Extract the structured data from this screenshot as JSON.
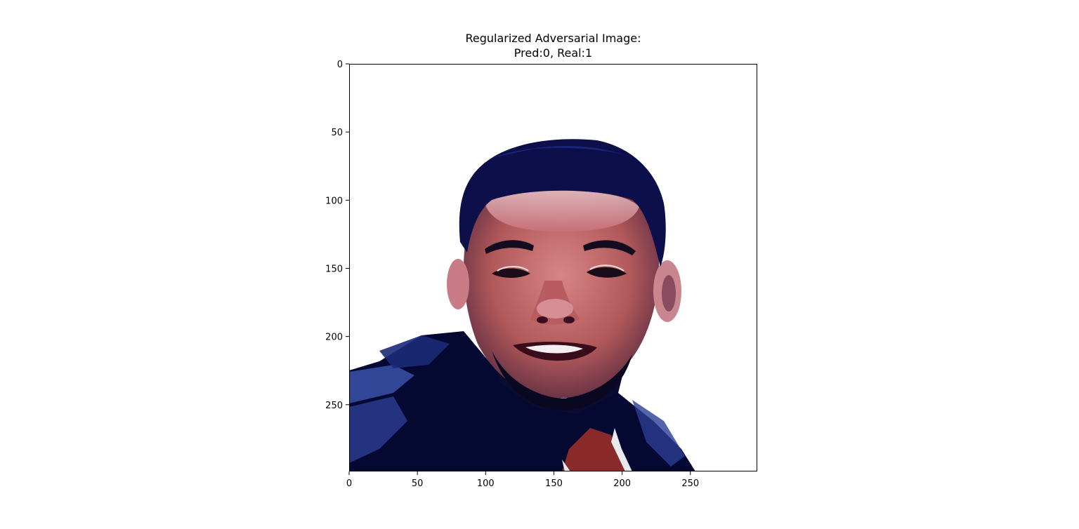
{
  "figure": {
    "title_line1": "Regularized Adversarial Image:",
    "title_line2": "Pred:0, Real:1",
    "image_extent": [
      0,
      299,
      299,
      0
    ],
    "x_ticks": [
      "0",
      "50",
      "100",
      "150",
      "200",
      "250"
    ],
    "y_ticks": [
      "0",
      "50",
      "100",
      "150",
      "200",
      "250"
    ],
    "colors": {
      "background": "#ffffff",
      "hair": "#0c0f4a",
      "skin": "#c76f6a",
      "skin_light": "#e7b7b8",
      "jacket": "#050830",
      "jacket_highlight": "#3a51a8",
      "shirt": "#8a2a2a"
    }
  }
}
